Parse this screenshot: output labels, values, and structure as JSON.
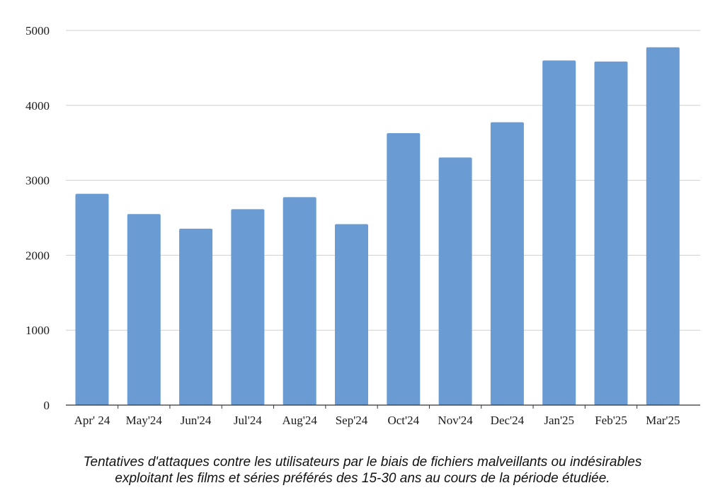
{
  "chart_data": {
    "type": "bar",
    "categories": [
      "Apr' 24",
      "May'24",
      "Jun'24",
      "Jul'24",
      "Aug'24",
      "Sep'24",
      "Oct'24",
      "Nov'24",
      "Dec'24",
      "Jan'25",
      "Feb'25",
      "Mar'25"
    ],
    "values": [
      2820,
      2550,
      2355,
      2615,
      2775,
      2415,
      3630,
      3305,
      3775,
      4600,
      4585,
      4775
    ],
    "ylim": [
      0,
      5000
    ],
    "yticks": [
      "0",
      "1000",
      "2000",
      "3000",
      "4000",
      "5000"
    ],
    "grid": true,
    "bar_color": "#6a9bd3",
    "grid_color": "#cfcfcf"
  },
  "caption": {
    "line1": "Tentatives d'attaques contre les utilisateurs par le biais de fichiers malveillants ou indésirables",
    "line2": "exploitant les films et séries préférés des 15-30 ans au cours de la période étudiée."
  }
}
